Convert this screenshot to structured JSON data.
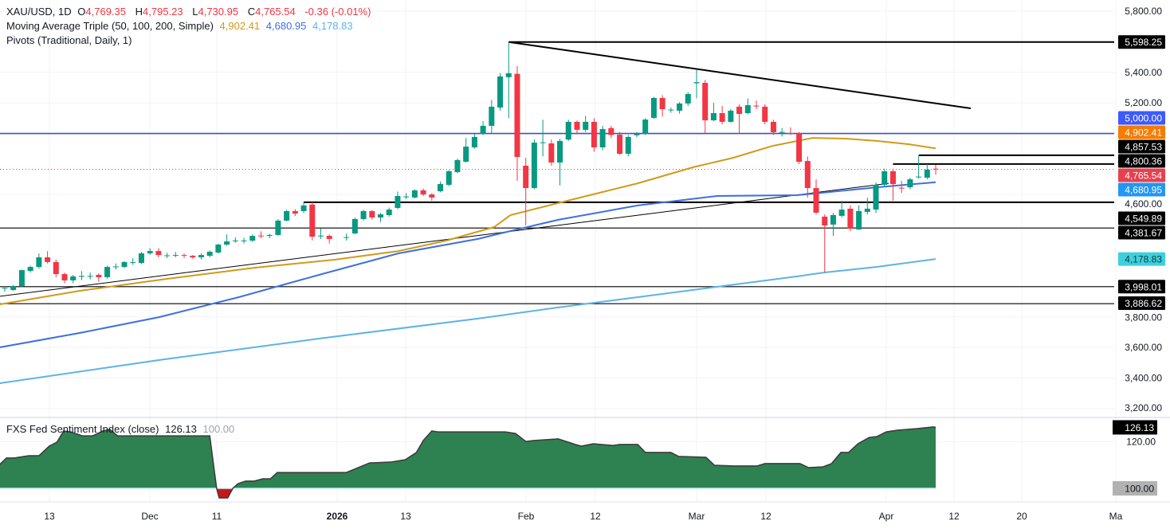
{
  "legend": {
    "symbol": "XAU/USD, 1D",
    "o_label": "O",
    "o_value": "4,769.35",
    "h_label": "H",
    "h_value": "4,795.23",
    "l_label": "L",
    "l_value": "4,730.95",
    "c_label": "C",
    "c_value": "4,765.54",
    "change": "-0.36 (-0.01%)",
    "ma_title": "Moving Average Triple (50, 100, 200, Simple)",
    "ma50": "4,902.41",
    "ma100": "4,680.95",
    "ma200": "4,178.83",
    "pivots_title": "Pivots (Traditional, Daily, 1)",
    "sentiment_title": "FXS Fed Sentiment Index (close)",
    "sentiment_value": "126.13",
    "sentiment_base": "100.00"
  },
  "colors": {
    "up": "#089981",
    "down": "#f23645",
    "ma50": "#d19a1a",
    "ma100": "#3f6fe0",
    "ma200": "#5cb3e6",
    "level_5000": "#3f4fc4",
    "sentiment_fill": "#2e8150",
    "sentiment_negative": "#c8171b"
  },
  "chart_data": {
    "type": "candlestick",
    "symbol": "XAU/USD",
    "interval": "1D",
    "candles": [
      [
        3985,
        4000,
        3965,
        3990
      ],
      [
        3976,
        4010,
        3970,
        4002
      ],
      [
        4002,
        4110,
        3995,
        4106
      ],
      [
        4101,
        4135,
        4090,
        4127
      ],
      [
        4127,
        4215,
        4115,
        4190
      ],
      [
        4190,
        4230,
        4150,
        4159
      ],
      [
        4159,
        4175,
        4060,
        4080
      ],
      [
        4080,
        4090,
        4020,
        4039
      ],
      [
        4039,
        4075,
        4020,
        4065
      ],
      [
        4062,
        4100,
        4040,
        4068
      ],
      [
        4065,
        4090,
        4045,
        4068
      ],
      [
        4075,
        4085,
        4030,
        4060
      ],
      [
        4060,
        4135,
        4050,
        4127
      ],
      [
        4125,
        4150,
        4110,
        4130
      ],
      [
        4127,
        4165,
        4120,
        4159
      ],
      [
        4155,
        4185,
        4140,
        4158
      ],
      [
        4153,
        4225,
        4145,
        4216
      ],
      [
        4216,
        4250,
        4205,
        4231
      ],
      [
        4231,
        4250,
        4190,
        4205
      ],
      [
        4200,
        4220,
        4185,
        4203
      ],
      [
        4202,
        4225,
        4190,
        4205
      ],
      [
        4205,
        4215,
        4185,
        4200
      ],
      [
        4200,
        4205,
        4180,
        4190
      ],
      [
        4190,
        4215,
        4175,
        4205
      ],
      [
        4200,
        4235,
        4190,
        4226
      ],
      [
        4221,
        4280,
        4215,
        4273
      ],
      [
        4273,
        4340,
        4265,
        4294
      ],
      [
        4297,
        4320,
        4285,
        4300
      ],
      [
        4298,
        4318,
        4280,
        4300
      ],
      [
        4299,
        4340,
        4290,
        4330
      ],
      [
        4332,
        4360,
        4315,
        4328
      ],
      [
        4330,
        4345,
        4315,
        4336
      ],
      [
        4336,
        4440,
        4330,
        4430
      ],
      [
        4430,
        4500,
        4425,
        4492
      ],
      [
        4492,
        4505,
        4460,
        4476
      ],
      [
        4492,
        4550,
        4480,
        4529
      ],
      [
        4535,
        4550,
        4300,
        4325
      ],
      [
        4328,
        4380,
        4310,
        4332
      ],
      [
        4330,
        4340,
        4280,
        4310
      ],
      null,
      [
        4318,
        4345,
        4300,
        4322
      ],
      [
        4346,
        4450,
        4340,
        4440
      ],
      [
        4440,
        4500,
        4430,
        4492
      ],
      [
        4492,
        4500,
        4435,
        4450
      ],
      [
        4450,
        4480,
        4420,
        4471
      ],
      [
        4466,
        4515,
        4455,
        4502
      ],
      [
        4513,
        4620,
        4505,
        4591
      ],
      [
        4584,
        4610,
        4570,
        4588
      ],
      [
        4581,
        4635,
        4575,
        4628
      ],
      [
        4628,
        4640,
        4590,
        4601
      ],
      [
        4601,
        4610,
        4560,
        4581
      ],
      [
        4622,
        4685,
        4615,
        4669
      ],
      [
        4664,
        4760,
        4655,
        4753
      ],
      [
        4747,
        4835,
        4740,
        4826
      ],
      [
        4815,
        4970,
        4810,
        4914
      ],
      [
        4909,
        4995,
        4900,
        4977
      ],
      [
        4998,
        5080,
        4990,
        5050
      ],
      [
        5050,
        5220,
        4995,
        5175
      ],
      [
        5170,
        5395,
        5150,
        5373
      ],
      [
        5368,
        5598.25,
        5100,
        5394
      ],
      [
        5390,
        5440,
        4690,
        4846
      ],
      [
        4789,
        4840,
        4400,
        4643
      ],
      [
        4643,
        4960,
        4635,
        4940
      ],
      [
        4938,
        5090,
        4850,
        4942
      ],
      [
        4935,
        4960,
        4790,
        4810
      ],
      [
        4810,
        4965,
        4660,
        4951
      ],
      [
        4960,
        5090,
        4950,
        5076
      ],
      [
        5076,
        5085,
        5000,
        5024
      ],
      [
        5024,
        5115,
        5010,
        5076
      ],
      [
        5076,
        5100,
        4880,
        4909
      ],
      [
        4909,
        5050,
        4890,
        5029
      ],
      [
        5035,
        5050,
        4970,
        4990
      ],
      [
        4992,
        5010,
        4860,
        4867
      ],
      [
        4867,
        4990,
        4850,
        4977
      ],
      [
        4988,
        5010,
        4975,
        4995
      ],
      [
        4998,
        5100,
        4990,
        5091
      ],
      [
        5102,
        5240,
        5095,
        5232
      ],
      [
        5232,
        5250,
        5110,
        5159
      ],
      [
        5152,
        5170,
        5135,
        5156
      ],
      [
        5149,
        5205,
        5130,
        5196
      ],
      [
        5196,
        5270,
        5180,
        5258
      ],
      [
        5328,
        5418,
        5230,
        5335
      ],
      [
        5331,
        5350,
        4995,
        5086
      ],
      [
        5086,
        5200,
        5080,
        5133
      ],
      [
        5133,
        5180,
        5060,
        5076
      ],
      [
        5076,
        5160,
        5070,
        5149
      ],
      [
        5175,
        5190,
        5000,
        5128
      ],
      [
        5133,
        5230,
        5125,
        5185
      ],
      [
        5182,
        5215,
        5160,
        5178
      ],
      [
        5175,
        5190,
        5060,
        5076
      ],
      [
        5076,
        5090,
        4990,
        5008
      ],
      [
        5006,
        5035,
        4980,
        5010
      ],
      [
        5003,
        5040,
        4990,
        5000
      ],
      [
        5003,
        5010,
        4800,
        4815
      ],
      [
        4820,
        4850,
        4580,
        4643
      ],
      [
        4643,
        4700,
        4470,
        4482
      ],
      [
        4456,
        4470,
        4091,
        4398
      ],
      [
        4404,
        4480,
        4330,
        4466
      ],
      [
        4461,
        4560,
        4450,
        4502
      ],
      [
        4508,
        4530,
        4360,
        4377
      ],
      [
        4372,
        4530,
        4370,
        4492
      ],
      [
        4487,
        4580,
        4470,
        4508
      ],
      [
        4502,
        4680,
        4480,
        4664
      ],
      [
        4664,
        4770,
        4650,
        4753
      ],
      [
        4753,
        4770,
        4560,
        4669
      ],
      [
        4645,
        4690,
        4610,
        4643
      ],
      [
        4648,
        4710,
        4635,
        4700
      ],
      [
        4714,
        4852,
        4705,
        4718
      ],
      [
        4711,
        4800,
        4700,
        4763
      ],
      [
        4769.35,
        4795.23,
        4730.95,
        4765.54
      ]
    ],
    "moving_averages": [
      {
        "period": 50,
        "type": "Simple",
        "last": 4902.41,
        "color": "#d19a1a",
        "points": [
          [
            -0.6,
            3882
          ],
          [
            8.8,
            3971
          ],
          [
            19,
            4049
          ],
          [
            29.3,
            4122
          ],
          [
            38.6,
            4174
          ],
          [
            46.1,
            4231
          ],
          [
            51.7,
            4299
          ],
          [
            57.3,
            4388
          ],
          [
            59.2,
            4466
          ],
          [
            66.6,
            4570
          ],
          [
            74.1,
            4674
          ],
          [
            80.6,
            4779
          ],
          [
            85.3,
            4841
          ],
          [
            89.9,
            4919
          ],
          [
            94.6,
            4971
          ],
          [
            98.4,
            4966
          ],
          [
            102.1,
            4951
          ],
          [
            105.8,
            4930
          ],
          [
            109,
            4902.41
          ]
        ]
      },
      {
        "period": 100,
        "type": "Simple",
        "last": 4680.95,
        "color": "#3f6fe0",
        "points": [
          [
            -0.6,
            3601
          ],
          [
            8.8,
            3695
          ],
          [
            18.1,
            3799
          ],
          [
            27.4,
            3929
          ],
          [
            36.8,
            4075
          ],
          [
            46.1,
            4216
          ],
          [
            55.4,
            4310
          ],
          [
            59.2,
            4362
          ],
          [
            64.8,
            4435
          ],
          [
            74.1,
            4529
          ],
          [
            83.4,
            4591
          ],
          [
            92.8,
            4596
          ],
          [
            102.1,
            4648
          ],
          [
            109,
            4680.95
          ]
        ]
      },
      {
        "period": 200,
        "type": "Simple",
        "last": 4178.83,
        "color": "#5cb3e6",
        "points": [
          [
            -0.6,
            3366
          ],
          [
            18.1,
            3518
          ],
          [
            36.8,
            3658
          ],
          [
            55.4,
            3789
          ],
          [
            64.8,
            3862
          ],
          [
            74.1,
            3929
          ],
          [
            83.4,
            3997
          ],
          [
            92.8,
            4065
          ],
          [
            96,
            4091
          ],
          [
            102.1,
            4127
          ],
          [
            109,
            4178.83
          ]
        ]
      }
    ],
    "pivot_levels": [
      {
        "value": 5598.25,
        "label": "5,598.25",
        "from_index": 59
      },
      {
        "value": 4857.53,
        "label": "4,857.53",
        "from_index": 107
      },
      {
        "value": 4800.36,
        "label": "4,800.36",
        "from_index": 104
      },
      {
        "value": 4549.89,
        "label": "4,549.89",
        "from_index": 35
      },
      {
        "value": 4381.67,
        "label": "4,381.67",
        "from_index": -1
      },
      {
        "value": 3998.01,
        "label": "3,998.01",
        "from_index": -1
      },
      {
        "value": 3886.62,
        "label": "3,886.62",
        "from_index": -1
      }
    ],
    "horizontal_level": {
      "value": 5000,
      "label": "5,000.00",
      "color": "#3f4fc4"
    },
    "trendlines": [
      {
        "from": [
          59,
          5598.25
        ],
        "to": [
          113.1,
          5164
        ]
      },
      {
        "from": [
          -0.6,
          3935
        ],
        "to": [
          103.5,
          4674
        ]
      }
    ],
    "last_price": {
      "value": 4765.54,
      "label": "4,765.54"
    },
    "price_axis_ticks": [
      {
        "value": 5800,
        "label": "5,800.00"
      },
      {
        "value": 5400,
        "label": "5,400.00"
      },
      {
        "value": 5200,
        "label": "5,200.00"
      },
      {
        "value": 4600,
        "label": "4,600.00"
      },
      {
        "value": 3800,
        "label": "3,800.00"
      },
      {
        "value": 3600,
        "label": "3,600.00"
      },
      {
        "value": 3400,
        "label": "3,400.00"
      },
      {
        "value": 3200,
        "label": "3,200.00"
      }
    ],
    "price_axis_badges": [
      {
        "value": 5598.25,
        "label": "5,598.25",
        "bg": "#000000",
        "fg": "#ffffff"
      },
      {
        "value": 5000,
        "label": "5,000.00",
        "bg": "#3d5afe",
        "fg": "#ffffff"
      },
      {
        "value": 4902.41,
        "label": "4,902.41",
        "bg": "#f57c00",
        "fg": "#ffffff"
      },
      {
        "value": 4857.53,
        "label": "4,857.53",
        "bg": "#000000",
        "fg": "#ffffff"
      },
      {
        "value": 4800.36,
        "label": "4,800.36",
        "bg": "#000000",
        "fg": "#ffffff"
      },
      {
        "value": 4765.54,
        "label": "4,765.54",
        "bg": "#e5414f",
        "fg": "#ffffff"
      },
      {
        "value": 4680.95,
        "label": "4,680.95",
        "bg": "#2196f3",
        "fg": "#ffffff"
      },
      {
        "value": 4549.89,
        "label": "4,549.89",
        "bg": "#000000",
        "fg": "#ffffff"
      },
      {
        "value": 4381.67,
        "label": "4,381.67",
        "bg": "#000000",
        "fg": "#ffffff"
      },
      {
        "value": 4178.83,
        "label": "4,178.83",
        "bg": "#3fd0de",
        "fg": "#0b3b40"
      },
      {
        "value": 3998.01,
        "label": "3,998.01",
        "bg": "#000000",
        "fg": "#ffffff"
      },
      {
        "value": 3886.62,
        "label": "3,886.62",
        "bg": "#000000",
        "fg": "#ffffff"
      }
    ],
    "time_axis_labels": [
      "13",
      "Dec",
      "11",
      "2026",
      "13",
      "Feb",
      "12",
      "Mar",
      "12",
      "Apr",
      "12",
      "20",
      "Ma"
    ],
    "sentiment": {
      "name": "FXS Fed Sentiment Index (close)",
      "last": 126.13,
      "baseline": 100,
      "axis_ticks": [
        {
          "value": 120,
          "label": "120.00"
        }
      ],
      "badges": [
        {
          "value": 126.13,
          "label": "126.13",
          "bg": "#000000",
          "fg": "#ffffff"
        },
        {
          "value": 100,
          "label": "100.00",
          "bg": "#b2b2b2",
          "fg": "#131722"
        }
      ],
      "points": [
        [
          -0.6,
          110.2
        ],
        [
          0.2,
          113
        ],
        [
          1.1,
          113
        ],
        [
          2.8,
          114
        ],
        [
          4,
          114
        ],
        [
          5.2,
          118.1
        ],
        [
          6.1,
          119.8
        ],
        [
          6.9,
          124.6
        ],
        [
          7.7,
          124.2
        ],
        [
          9.1,
          122.5
        ],
        [
          10.3,
          122.5
        ],
        [
          11.5,
          124.6
        ],
        [
          12.3,
          125.3
        ],
        [
          13.2,
          122.5
        ],
        [
          24,
          122.5
        ],
        [
          24.8,
          100
        ],
        [
          25.1,
          95.9
        ],
        [
          26.1,
          95.9
        ],
        [
          26.7,
          100
        ],
        [
          27.3,
          102
        ],
        [
          28.2,
          103.1
        ],
        [
          29.2,
          103.1
        ],
        [
          30.2,
          104.1
        ],
        [
          31.1,
          104.1
        ],
        [
          31.9,
          106.8
        ],
        [
          40,
          106.8
        ],
        [
          42.7,
          110.9
        ],
        [
          45.3,
          111.3
        ],
        [
          46.9,
          112.3
        ],
        [
          48.2,
          115.4
        ],
        [
          49,
          120.5
        ],
        [
          50,
          124.6
        ],
        [
          50.7,
          124.2
        ],
        [
          58.6,
          124.2
        ],
        [
          59.8,
          123.5
        ],
        [
          61,
          120.1
        ],
        [
          62,
          120.5
        ],
        [
          64.8,
          121.2
        ],
        [
          66.8,
          118.8
        ],
        [
          67.5,
          118.1
        ],
        [
          68.9,
          119.1
        ],
        [
          71.2,
          118.4
        ],
        [
          72,
          118.8
        ],
        [
          74.1,
          118.8
        ],
        [
          75,
          115.4
        ],
        [
          78,
          115.4
        ],
        [
          78.9,
          113.7
        ],
        [
          82.1,
          113.3
        ],
        [
          83.1,
          109.9
        ],
        [
          85.4,
          109.6
        ],
        [
          88.1,
          109.6
        ],
        [
          89,
          110.6
        ],
        [
          93.1,
          110.6
        ],
        [
          94.1,
          108.9
        ],
        [
          95.8,
          109.2
        ],
        [
          96.8,
          110.6
        ],
        [
          97.9,
          115.4
        ],
        [
          98.8,
          115.4
        ],
        [
          99.9,
          119.1
        ],
        [
          101.2,
          121.8
        ],
        [
          102.1,
          122.2
        ],
        [
          103.2,
          124.2
        ],
        [
          104.5,
          124.9
        ],
        [
          106.8,
          125.6
        ],
        [
          108.7,
          126.3
        ],
        [
          109,
          126.13
        ]
      ]
    }
  }
}
